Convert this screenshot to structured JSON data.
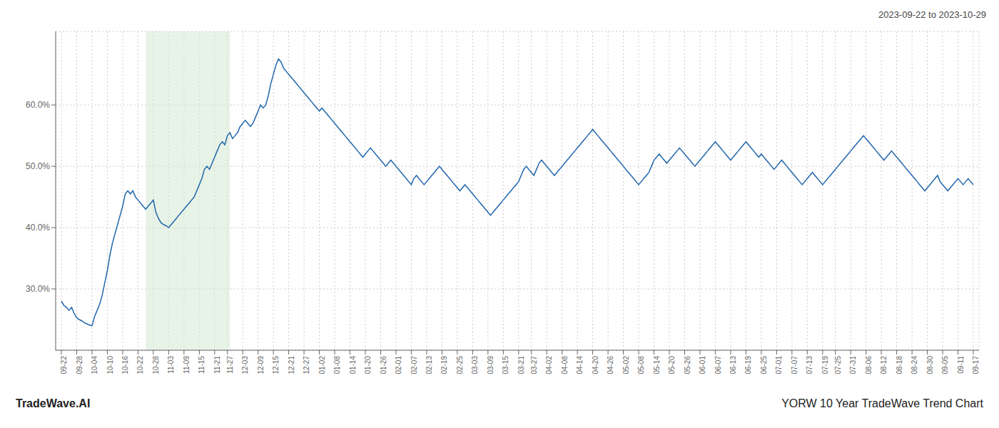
{
  "chart_data": {
    "type": "line",
    "title": "2023-09-22 to 2023-10-29",
    "annotations": [
      "TradeWave.AI",
      "YORW 10 Year TradeWave Trend Chart"
    ],
    "color": "#2166ac",
    "grid": true,
    "ylim": [
      20,
      72
    ],
    "yticks": [
      {
        "value": 30.0,
        "label": "30.0%"
      },
      {
        "value": 40.0,
        "label": "40.0%"
      },
      {
        "value": 50.0,
        "label": "50.0%"
      },
      {
        "value": 60.0,
        "label": "60.0%"
      }
    ],
    "shading": {
      "start_frac": 0.093,
      "end_frac": 0.185,
      "color": "#d4ead4"
    },
    "categories": [
      "09-22",
      null,
      null,
      null,
      null,
      null,
      "09-28",
      null,
      null,
      null,
      null,
      null,
      "10-04",
      null,
      null,
      null,
      null,
      null,
      "10-10",
      null,
      null,
      null,
      null,
      null,
      "10-16",
      null,
      null,
      null,
      null,
      null,
      "10-22",
      null,
      null,
      null,
      null,
      null,
      "10-28",
      null,
      null,
      null,
      null,
      null,
      "11-03",
      null,
      null,
      null,
      null,
      null,
      "11-09",
      null,
      null,
      null,
      null,
      null,
      "11-15",
      null,
      null,
      null,
      null,
      null,
      "11-21",
      null,
      null,
      null,
      null,
      "11-27",
      null,
      null,
      null,
      null,
      null,
      "12-03",
      null,
      null,
      null,
      null,
      null,
      "12-09",
      null,
      null,
      null,
      null,
      null,
      "12-15",
      null,
      null,
      null,
      null,
      null,
      "12-21",
      null,
      null,
      null,
      null,
      null,
      "12-27",
      null,
      null,
      null,
      null,
      null,
      "01-02",
      null,
      null,
      null,
      null,
      null,
      "01-08",
      null,
      null,
      null,
      null,
      null,
      "01-14",
      null,
      null,
      null,
      null,
      null,
      "01-20",
      null,
      null,
      null,
      null,
      null,
      "01-26",
      null,
      null,
      null,
      null,
      null,
      "02-01",
      null,
      null,
      null,
      null,
      null,
      "02-07",
      null,
      null,
      null,
      null,
      null,
      "02-13",
      null,
      null,
      null,
      null,
      null,
      "02-19",
      null,
      null,
      null,
      null,
      null,
      "02-25",
      null,
      null,
      null,
      null,
      null,
      "03-03",
      null,
      null,
      null,
      null,
      null,
      "03-09",
      null,
      null,
      null,
      null,
      null,
      "03-15",
      null,
      null,
      null,
      null,
      null,
      "03-21",
      null,
      null,
      null,
      null,
      "03-27",
      null,
      null,
      null,
      null,
      null,
      "04-02",
      null,
      null,
      null,
      null,
      null,
      "04-08",
      null,
      null,
      null,
      null,
      null,
      "04-14",
      null,
      null,
      null,
      null,
      null,
      "04-20",
      null,
      null,
      null,
      null,
      null,
      "04-26",
      null,
      null,
      null,
      null,
      null,
      "05-02",
      null,
      null,
      null,
      null,
      null,
      "05-08",
      null,
      null,
      null,
      null,
      null,
      "05-14",
      null,
      null,
      null,
      null,
      null,
      "05-20",
      null,
      null,
      null,
      null,
      null,
      "05-26",
      null,
      null,
      null,
      null,
      null,
      "06-01",
      null,
      null,
      null,
      null,
      null,
      "06-07",
      null,
      null,
      null,
      null,
      null,
      "06-13",
      null,
      null,
      null,
      null,
      null,
      "06-19",
      null,
      null,
      null,
      null,
      null,
      "06-25",
      null,
      null,
      null,
      null,
      null,
      "07-01",
      null,
      null,
      null,
      null,
      null,
      "07-07",
      null,
      null,
      null,
      null,
      null,
      "07-13",
      null,
      null,
      null,
      null,
      null,
      "07-19",
      null,
      null,
      null,
      null,
      "07-25",
      null,
      null,
      null,
      null,
      null,
      "07-31",
      null,
      null,
      null,
      null,
      null,
      "08-06",
      null,
      null,
      null,
      null,
      null,
      "08-12",
      null,
      null,
      null,
      null,
      null,
      "08-18",
      null,
      null,
      null,
      null,
      null,
      "08-24",
      null,
      null,
      null,
      null,
      null,
      "08-30",
      null,
      null,
      null,
      null,
      null,
      "09-05",
      null,
      null,
      null,
      null,
      null,
      "09-11",
      null,
      null,
      null,
      null,
      null,
      "09-17"
    ],
    "values": [
      28.0,
      27.3,
      27.0,
      26.5,
      27.0,
      26.0,
      25.3,
      25.0,
      24.8,
      24.5,
      24.3,
      24.1,
      24.0,
      25.5,
      26.5,
      27.5,
      29.0,
      31.0,
      33.0,
      35.5,
      37.5,
      39.0,
      40.5,
      42.0,
      43.5,
      45.5,
      46.0,
      45.5,
      46.0,
      45.0,
      44.5,
      44.0,
      43.5,
      43.0,
      43.5,
      44.0,
      44.5,
      42.5,
      41.5,
      40.8,
      40.5,
      40.3,
      40.0,
      40.5,
      41.0,
      41.5,
      42.0,
      42.5,
      43.0,
      43.5,
      44.0,
      44.5,
      45.0,
      46.0,
      47.0,
      48.0,
      49.5,
      50.0,
      49.5,
      50.5,
      51.5,
      52.5,
      53.5,
      54.0,
      53.5,
      55.0,
      55.5,
      54.5,
      55.0,
      55.5,
      56.5,
      57.0,
      57.5,
      57.0,
      56.5,
      57.0,
      58.0,
      59.0,
      60.0,
      59.5,
      60.0,
      61.5,
      63.5,
      65.0,
      66.5,
      67.5,
      67.0,
      66.0,
      65.5,
      65.0,
      64.5,
      64.0,
      63.5,
      63.0,
      62.5,
      62.0,
      61.5,
      61.0,
      60.5,
      60.0,
      59.5,
      59.0,
      59.5,
      59.0,
      58.5,
      58.0,
      57.5,
      57.0,
      56.5,
      56.0,
      55.5,
      55.0,
      54.5,
      54.0,
      53.5,
      53.0,
      52.5,
      52.0,
      51.5,
      52.0,
      52.5,
      53.0,
      52.5,
      52.0,
      51.5,
      51.0,
      50.5,
      50.0,
      50.5,
      51.0,
      50.5,
      50.0,
      49.5,
      49.0,
      48.5,
      48.0,
      47.5,
      47.0,
      48.0,
      48.5,
      48.0,
      47.5,
      47.0,
      47.5,
      48.0,
      48.5,
      49.0,
      49.5,
      50.0,
      49.5,
      49.0,
      48.5,
      48.0,
      47.5,
      47.0,
      46.5,
      46.0,
      46.5,
      47.0,
      46.5,
      46.0,
      45.5,
      45.0,
      44.5,
      44.0,
      43.5,
      43.0,
      42.5,
      42.0,
      42.5,
      43.0,
      43.5,
      44.0,
      44.5,
      45.0,
      45.5,
      46.0,
      46.5,
      47.0,
      47.5,
      48.5,
      49.5,
      50.0,
      49.5,
      49.0,
      48.5,
      49.5,
      50.5,
      51.0,
      50.5,
      50.0,
      49.5,
      49.0,
      48.5,
      49.0,
      49.5,
      50.0,
      50.5,
      51.0,
      51.5,
      52.0,
      52.5,
      53.0,
      53.5,
      54.0,
      54.5,
      55.0,
      55.5,
      56.0,
      55.5,
      55.0,
      54.5,
      54.0,
      53.5,
      53.0,
      52.5,
      52.0,
      51.5,
      51.0,
      50.5,
      50.0,
      49.5,
      49.0,
      48.5,
      48.0,
      47.5,
      47.0,
      47.5,
      48.0,
      48.5,
      49.0,
      50.0,
      51.0,
      51.5,
      52.0,
      51.5,
      51.0,
      50.5,
      51.0,
      51.5,
      52.0,
      52.5,
      53.0,
      52.5,
      52.0,
      51.5,
      51.0,
      50.5,
      50.0,
      50.5,
      51.0,
      51.5,
      52.0,
      52.5,
      53.0,
      53.5,
      54.0,
      53.5,
      53.0,
      52.5,
      52.0,
      51.5,
      51.0,
      51.5,
      52.0,
      52.5,
      53.0,
      53.5,
      54.0,
      53.5,
      53.0,
      52.5,
      52.0,
      51.5,
      52.0,
      51.5,
      51.0,
      50.5,
      50.0,
      49.5,
      50.0,
      50.5,
      51.0,
      50.5,
      50.0,
      49.5,
      49.0,
      48.5,
      48.0,
      47.5,
      47.0,
      47.5,
      48.0,
      48.5,
      49.0,
      48.5,
      48.0,
      47.5,
      47.0,
      47.5,
      48.0,
      48.5,
      49.0,
      49.5,
      50.0,
      50.5,
      51.0,
      51.5,
      52.0,
      52.5,
      53.0,
      53.5,
      54.0,
      54.5,
      55.0,
      54.5,
      54.0,
      53.5,
      53.0,
      52.5,
      52.0,
      51.5,
      51.0,
      51.5,
      52.0,
      52.5,
      52.0,
      51.5,
      51.0,
      50.5,
      50.0,
      49.5,
      49.0,
      48.5,
      48.0,
      47.5,
      47.0,
      46.5,
      46.0,
      46.5,
      47.0,
      47.5,
      48.0,
      48.5,
      47.5,
      47.0,
      46.5,
      46.0,
      46.5,
      47.0,
      47.5,
      48.0,
      47.5,
      47.0,
      47.5,
      48.0,
      47.5,
      47.0
    ]
  }
}
